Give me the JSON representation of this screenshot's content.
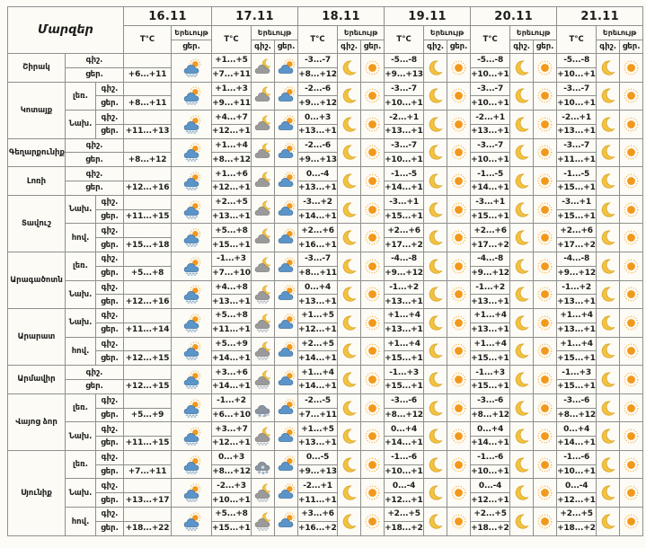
{
  "table_title": "Մարզեր",
  "column_headers": {
    "temperature": "T°C",
    "phenomenon": "Երեւույթ",
    "night": "գիշ.",
    "day": "ցեր."
  },
  "dates": [
    "16.11",
    "17.11",
    "18.11",
    "19.11",
    "20.11",
    "21.11"
  ],
  "colors": {
    "background": "#FCFBF5",
    "border": "#8F8F8F",
    "sun": "#F2981B",
    "moon": "#F3C33F",
    "day_cloud": "#5B94C8",
    "night_cloud": "#9A9A9A",
    "snow_cloud": "#8A93A0"
  },
  "regions": [
    {
      "name": "Շիրակ",
      "zones": [
        {
          "label": "",
          "night_temps": [
            "",
            "+1...+5",
            "-3...-7",
            "-5...-8",
            "-5...-8",
            "-5...-8"
          ],
          "day_temps": [
            "+6...+11",
            "+7...+11",
            "+8...+12",
            "+9...+13",
            "+10...+13",
            "+10...+13"
          ],
          "night_icons": [
            null,
            "cloud-moon",
            "moon",
            "moon",
            "moon",
            "moon"
          ],
          "day_icons": [
            "sun-cloud-rain",
            "sun-cloud",
            "sun",
            "sun",
            "sun",
            "sun"
          ]
        }
      ]
    },
    {
      "name": "Կոտայք",
      "zones": [
        {
          "label": "լեռ.",
          "night_temps": [
            "",
            "+1...+3",
            "-2...-6",
            "-3...-7",
            "-3...-7",
            "-3...-7"
          ],
          "day_temps": [
            "+8...+11",
            "+9...+11",
            "+9...+12",
            "+10...+13",
            "+10...+13",
            "+10...+13"
          ],
          "night_icons": [
            null,
            "cloud-moon",
            "moon",
            "moon",
            "moon",
            "moon"
          ],
          "day_icons": [
            "sun-cloud-rain",
            "sun-cloud",
            "sun",
            "sun",
            "sun",
            "sun"
          ]
        },
        {
          "label": "Նախ.",
          "night_temps": [
            "",
            "+4...+7",
            "0...+3",
            "-2...+1",
            "-2...+1",
            "-2...+1"
          ],
          "day_temps": [
            "+11...+13",
            "+12...+14",
            "+13...+15",
            "+13...+15",
            "+13...+15",
            "+13...+15"
          ],
          "night_icons": [
            null,
            "cloud-moon",
            "moon",
            "moon",
            "moon",
            "moon"
          ],
          "day_icons": [
            "sun-cloud-rain",
            "sun-cloud",
            "sun",
            "sun",
            "sun",
            "sun"
          ]
        }
      ]
    },
    {
      "name": "Գեղարքունիք",
      "zones": [
        {
          "label": "",
          "night_temps": [
            "",
            "+1...+4",
            "-2...-6",
            "-3...-7",
            "-3...-7",
            "-3...-7"
          ],
          "day_temps": [
            "+8...+12",
            "+8...+12",
            "+9...+13",
            "+10...+13",
            "+10...+13",
            "+11...+14"
          ],
          "night_icons": [
            null,
            "cloud-moon",
            "moon",
            "moon",
            "moon",
            "moon"
          ],
          "day_icons": [
            "sun-cloud-rain",
            "sun-cloud",
            "sun",
            "sun",
            "sun",
            "sun"
          ]
        }
      ]
    },
    {
      "name": "Լոռի",
      "zones": [
        {
          "label": "",
          "night_temps": [
            "",
            "+1...+6",
            "0...-4",
            "-1...-5",
            "-1...-5",
            "-1...-5"
          ],
          "day_temps": [
            "+12...+16",
            "+12...+16",
            "+13...+17",
            "+14...+18",
            "+14...+18",
            "+15...+19"
          ],
          "night_icons": [
            null,
            "cloud-moon",
            "moon",
            "moon",
            "moon",
            "moon"
          ],
          "day_icons": [
            "sun-cloud-rain",
            "sun-cloud",
            "sun",
            "sun",
            "sun",
            "sun"
          ]
        }
      ]
    },
    {
      "name": "Տավուշ",
      "zones": [
        {
          "label": "Նախ.",
          "night_temps": [
            "",
            "+2...+5",
            "-3...+2",
            "-3...+1",
            "-3...+1",
            "-3...+1"
          ],
          "day_temps": [
            "+11...+15",
            "+13...+16",
            "+14...+17",
            "+15...+18",
            "+15...+18",
            "+15...+18"
          ],
          "night_icons": [
            null,
            "cloud-moon",
            "moon",
            "moon",
            "moon",
            "moon"
          ],
          "day_icons": [
            "sun-cloud-rain",
            "sun-cloud",
            "sun",
            "sun",
            "sun",
            "sun"
          ]
        },
        {
          "label": "հով.",
          "night_temps": [
            "",
            "+5...+8",
            "+2...+6",
            "+2...+6",
            "+2...+6",
            "+2...+6"
          ],
          "day_temps": [
            "+15...+18",
            "+15...+18",
            "+16...+19",
            "+17...+20",
            "+17...+20",
            "+17...+21"
          ],
          "night_icons": [
            null,
            "cloud-moon",
            "moon",
            "moon",
            "moon",
            "moon"
          ],
          "day_icons": [
            "sun-cloud-rain",
            "sun-cloud",
            "sun",
            "sun",
            "sun",
            "sun"
          ]
        }
      ]
    },
    {
      "name": "Արագածոտն",
      "zones": [
        {
          "label": "լեռ.",
          "night_temps": [
            "",
            "-1...+3",
            "-3...-7",
            "-4...-8",
            "-4...-8",
            "-4...-8"
          ],
          "day_temps": [
            "+5...+8",
            "+7...+10",
            "+8...+11",
            "+9...+12",
            "+9...+12",
            "+9...+12"
          ],
          "night_icons": [
            null,
            "cloud-moon",
            "moon",
            "moon",
            "moon",
            "moon"
          ],
          "day_icons": [
            "sun-cloud-rain",
            "sun-cloud",
            "sun",
            "sun",
            "sun",
            "sun"
          ]
        },
        {
          "label": "Նախ.",
          "night_temps": [
            "",
            "+4...+8",
            "0...+4",
            "-1...+2",
            "-1...+2",
            "-1...+2"
          ],
          "day_temps": [
            "+12...+16",
            "+13...+17",
            "+13...+16",
            "+13...+16",
            "+13...+16",
            "+13...+16"
          ],
          "night_icons": [
            null,
            "cloud-moon-rain",
            "moon",
            "moon",
            "moon",
            "moon"
          ],
          "day_icons": [
            "sun-cloud-rain",
            "sun-cloud",
            "sun",
            "sun",
            "sun",
            "sun"
          ]
        }
      ]
    },
    {
      "name": "Արարատ",
      "zones": [
        {
          "label": "Նախ.",
          "night_temps": [
            "",
            "+5...+8",
            "+1...+5",
            "+1...+4",
            "+1...+4",
            "+1...+4"
          ],
          "day_temps": [
            "+11...+14",
            "+11...+14",
            "+12...+15",
            "+13...+16",
            "+13...+16",
            "+13...+16"
          ],
          "night_icons": [
            null,
            "cloud-moon-rain",
            "moon",
            "moon",
            "moon",
            "moon"
          ],
          "day_icons": [
            "sun-cloud-rain",
            "sun-cloud",
            "sun",
            "sun",
            "sun",
            "sun"
          ]
        },
        {
          "label": "հով.",
          "night_temps": [
            "",
            "+5...+9",
            "+2...+5",
            "+1...+4",
            "+1...+4",
            "+1...+4"
          ],
          "day_temps": [
            "+12...+15",
            "+14...+16",
            "+14...+17",
            "+15...+18",
            "+15...+18",
            "+15...+19"
          ],
          "night_icons": [
            null,
            "cloud-moon-rain",
            "moon",
            "moon",
            "moon",
            "moon"
          ],
          "day_icons": [
            "sun-cloud-rain",
            "sun-cloud",
            "sun",
            "sun",
            "sun",
            "sun"
          ]
        }
      ]
    },
    {
      "name": "Արմավիր",
      "zones": [
        {
          "label": "",
          "night_temps": [
            "",
            "+3...+6",
            "+1...+4",
            "-1...+3",
            "-1...+3",
            "-1...+3"
          ],
          "day_temps": [
            "+12...+15",
            "+14...+16",
            "+14...+17",
            "+15...+18",
            "+15...+18",
            "+15...+19"
          ],
          "night_icons": [
            null,
            "cloud-moon-rain",
            "moon",
            "moon",
            "moon",
            "moon"
          ],
          "day_icons": [
            "sun-cloud-rain",
            "sun-cloud",
            "sun",
            "sun",
            "sun",
            "sun"
          ]
        }
      ]
    },
    {
      "name": "Վայոց ձոր",
      "zones": [
        {
          "label": "լեռ.",
          "night_temps": [
            "",
            "-1...+2",
            "-2...-5",
            "-3...-6",
            "-3...-6",
            "-3...-6"
          ],
          "day_temps": [
            "+5...+9",
            "+6...+10",
            "+7...+11",
            "+8...+12",
            "+8...+12",
            "+8...+12"
          ],
          "night_icons": [
            null,
            "cloud-sleet",
            "moon",
            "moon",
            "moon",
            "moon"
          ],
          "day_icons": [
            "sun-cloud-rain",
            "sun-cloud",
            "sun",
            "sun",
            "sun",
            "sun"
          ]
        },
        {
          "label": "Նախ.",
          "night_temps": [
            "",
            "+3...+7",
            "+1...+5",
            "0...+4",
            "0...+4",
            "0...+4"
          ],
          "day_temps": [
            "+11...+15",
            "+12...+16",
            "+13...+17",
            "+14...+18",
            "+14...+18",
            "+14...+19"
          ],
          "night_icons": [
            null,
            "cloud-moon-rain",
            "moon",
            "moon",
            "moon",
            "moon"
          ],
          "day_icons": [
            "sun-cloud-rain",
            "sun-cloud",
            "sun",
            "sun",
            "sun",
            "sun"
          ]
        }
      ]
    },
    {
      "name": "Սյունիք",
      "zones": [
        {
          "label": "լեռ.",
          "night_temps": [
            "",
            "0...+3",
            "0...-5",
            "-1...-6",
            "-1...-6",
            "-1...-6"
          ],
          "day_temps": [
            "+7...+11",
            "+8...+12",
            "+9...+13",
            "+10...+14",
            "+10...+14",
            "+10...+15"
          ],
          "night_icons": [
            null,
            "cloud-snow",
            "moon",
            "moon",
            "moon",
            "moon"
          ],
          "day_icons": [
            "sun-cloud-rain",
            "sun-cloud",
            "sun",
            "sun",
            "sun",
            "sun"
          ]
        },
        {
          "label": "Նախ.",
          "night_temps": [
            "",
            "-2...+3",
            "-2...+1",
            "0...-4",
            "0...-4",
            "0...-4"
          ],
          "day_temps": [
            "+13...+17",
            "+10...+14",
            "+11...+15",
            "+12...+16",
            "+12...+16",
            "+12...+17"
          ],
          "night_icons": [
            null,
            "cloud-moon-rain",
            "moon",
            "moon",
            "moon",
            "moon"
          ],
          "day_icons": [
            "sun-cloud-rain",
            "sun-cloud",
            "sun",
            "sun",
            "sun",
            "sun"
          ]
        },
        {
          "label": "հով.",
          "night_temps": [
            "",
            "+5...+8",
            "+3...+6",
            "+2...+5",
            "+2...+5",
            "+2...+5"
          ],
          "day_temps": [
            "+18...+22",
            "+15...+18",
            "+16...+20",
            "+18...+21",
            "+18...+21",
            "+18...+22"
          ],
          "night_icons": [
            null,
            "cloud-moon-rain",
            "moon",
            "moon",
            "moon",
            "moon"
          ],
          "day_icons": [
            "sun-cloud-rain",
            "sun-cloud",
            "sun",
            "sun",
            "sun",
            "sun"
          ]
        }
      ]
    }
  ]
}
